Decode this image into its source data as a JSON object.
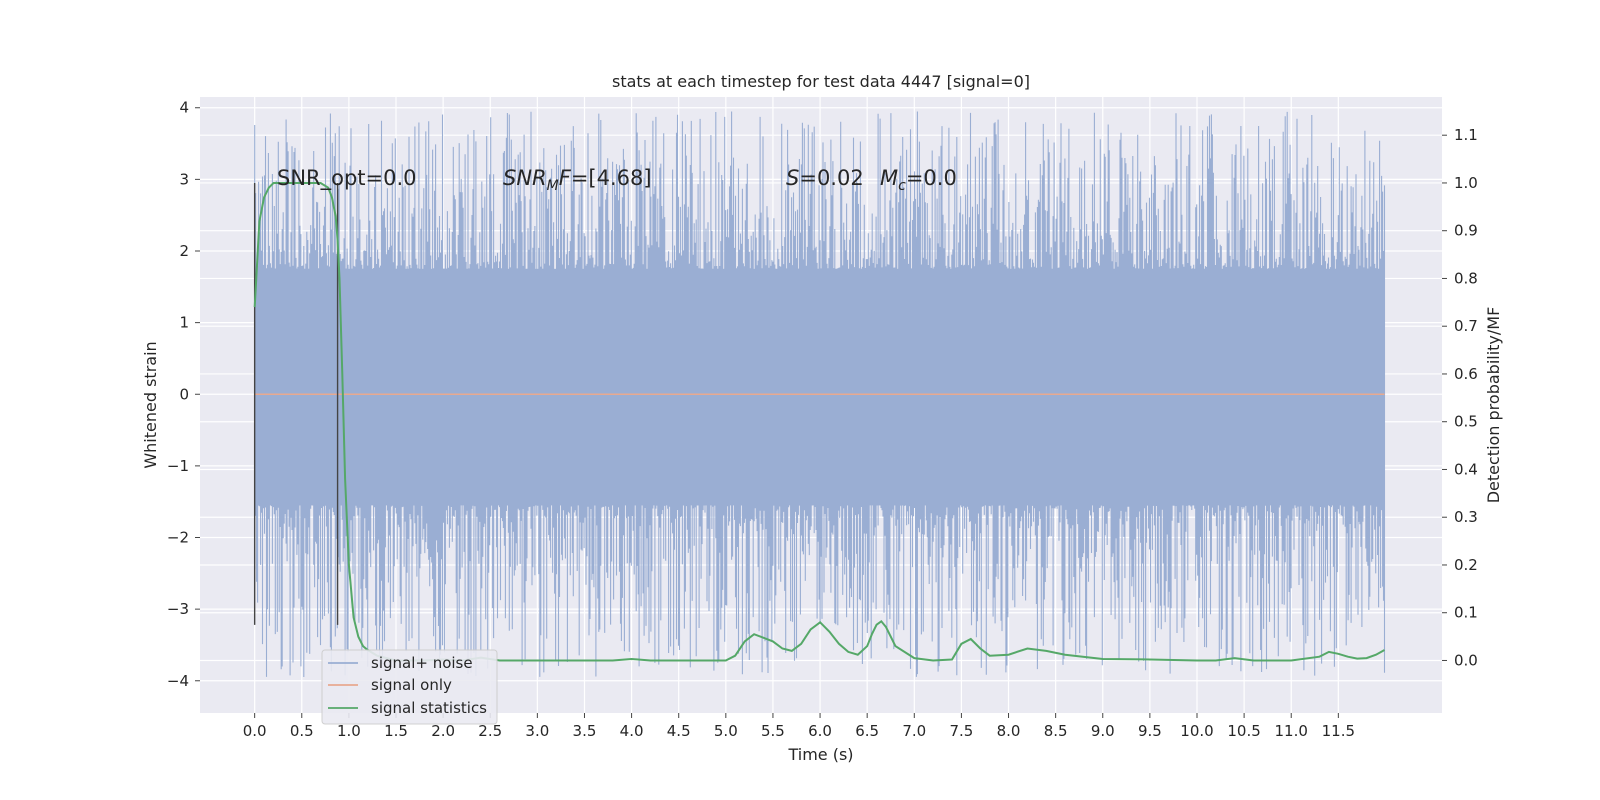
{
  "chart_data": {
    "type": "line",
    "title": "stats at each timestep for test data 4447 [signal=0]",
    "xlabel": "Time (s)",
    "ylabel": "Whitened strain",
    "y2label": "Detection probability/MF",
    "xlim": [
      -0.58,
      12.6
    ],
    "ylim": [
      -4.45,
      4.15
    ],
    "y2lim": [
      -0.11,
      1.18
    ],
    "xticks": [
      "0.0",
      "0.5",
      "1.0",
      "1.5",
      "2.0",
      "2.5",
      "3.0",
      "3.5",
      "4.0",
      "4.5",
      "5.0",
      "5.5",
      "6.0",
      "6.5",
      "7.0",
      "7.5",
      "8.0",
      "8.5",
      "9.0",
      "9.5",
      "10.0",
      "10.5",
      "11.0",
      "11.5"
    ],
    "yticks": [
      "4",
      "3",
      "2",
      "1",
      "0",
      "−1",
      "−2",
      "−3",
      "−4"
    ],
    "y2ticks": [
      "1.1",
      "1.0",
      "0.9",
      "0.8",
      "0.7",
      "0.6",
      "0.5",
      "0.4",
      "0.3",
      "0.2",
      "0.1",
      "0.0"
    ],
    "grid": true,
    "legend_position": "lower-left",
    "annotations": {
      "snr_opt": "SNR_opt=0.0",
      "snr_mf_label": "SNR",
      "snr_mf_sub": "M",
      "snr_mf_suffix": "F",
      "snr_mf_value": "=[4.68]",
      "s_label": "S",
      "s_value": "=0.02",
      "mc_label": "M",
      "mc_sub": "c",
      "mc_value": "=0.0"
    },
    "vlines_x": [
      0.0,
      0.88
    ],
    "vline_range": [
      -3.22,
      2.95
    ],
    "series": [
      {
        "name": "signal+ noise",
        "color": "#9aaed3",
        "kind": "noise",
        "x_range": [
          0.0,
          11.99
        ],
        "core_band": [
          -1.55,
          1.75
        ],
        "max_abs_value": 4.1
      },
      {
        "name": "signal only",
        "color": "#e8a98f",
        "x": [
          0.0,
          11.99
        ],
        "y": [
          0.0,
          0.0
        ]
      },
      {
        "name": "signal statistics",
        "color": "#55a868",
        "axis": "right",
        "x": [
          0.0,
          0.05,
          0.1,
          0.15,
          0.2,
          0.3,
          0.5,
          0.7,
          0.78,
          0.82,
          0.86,
          0.88,
          0.9,
          0.93,
          0.96,
          1.0,
          1.05,
          1.1,
          1.15,
          1.2,
          1.3,
          1.5,
          1.8,
          2.0,
          2.2,
          2.4,
          2.6,
          3.0,
          3.5,
          3.8,
          4.0,
          4.2,
          4.5,
          5.0,
          5.1,
          5.2,
          5.3,
          5.5,
          5.6,
          5.7,
          5.8,
          5.9,
          6.0,
          6.1,
          6.2,
          6.3,
          6.4,
          6.5,
          6.55,
          6.6,
          6.65,
          6.7,
          6.8,
          7.0,
          7.2,
          7.4,
          7.5,
          7.6,
          7.7,
          7.8,
          8.0,
          8.2,
          8.4,
          8.6,
          9.0,
          9.5,
          10.0,
          10.2,
          10.4,
          10.6,
          11.0,
          11.3,
          11.4,
          11.5,
          11.6,
          11.7,
          11.8,
          11.9,
          11.99
        ],
        "y": [
          0.74,
          0.92,
          0.97,
          0.99,
          1.0,
          1.0,
          1.0,
          1.0,
          0.99,
          0.97,
          0.93,
          0.88,
          0.8,
          0.6,
          0.38,
          0.2,
          0.09,
          0.05,
          0.03,
          0.022,
          0.01,
          0.0,
          0.0,
          0.002,
          0.0,
          0.006,
          0.0,
          0.0,
          0.0,
          0.0,
          0.003,
          0.0,
          0.0,
          0.0,
          0.01,
          0.04,
          0.055,
          0.04,
          0.025,
          0.02,
          0.035,
          0.065,
          0.08,
          0.06,
          0.035,
          0.018,
          0.012,
          0.03,
          0.055,
          0.075,
          0.082,
          0.07,
          0.03,
          0.005,
          0.0,
          0.002,
          0.035,
          0.045,
          0.025,
          0.01,
          0.012,
          0.025,
          0.02,
          0.012,
          0.003,
          0.002,
          0.0,
          0.0,
          0.005,
          0.0,
          0.0,
          0.008,
          0.018,
          0.014,
          0.008,
          0.004,
          0.005,
          0.012,
          0.022
        ]
      }
    ]
  }
}
